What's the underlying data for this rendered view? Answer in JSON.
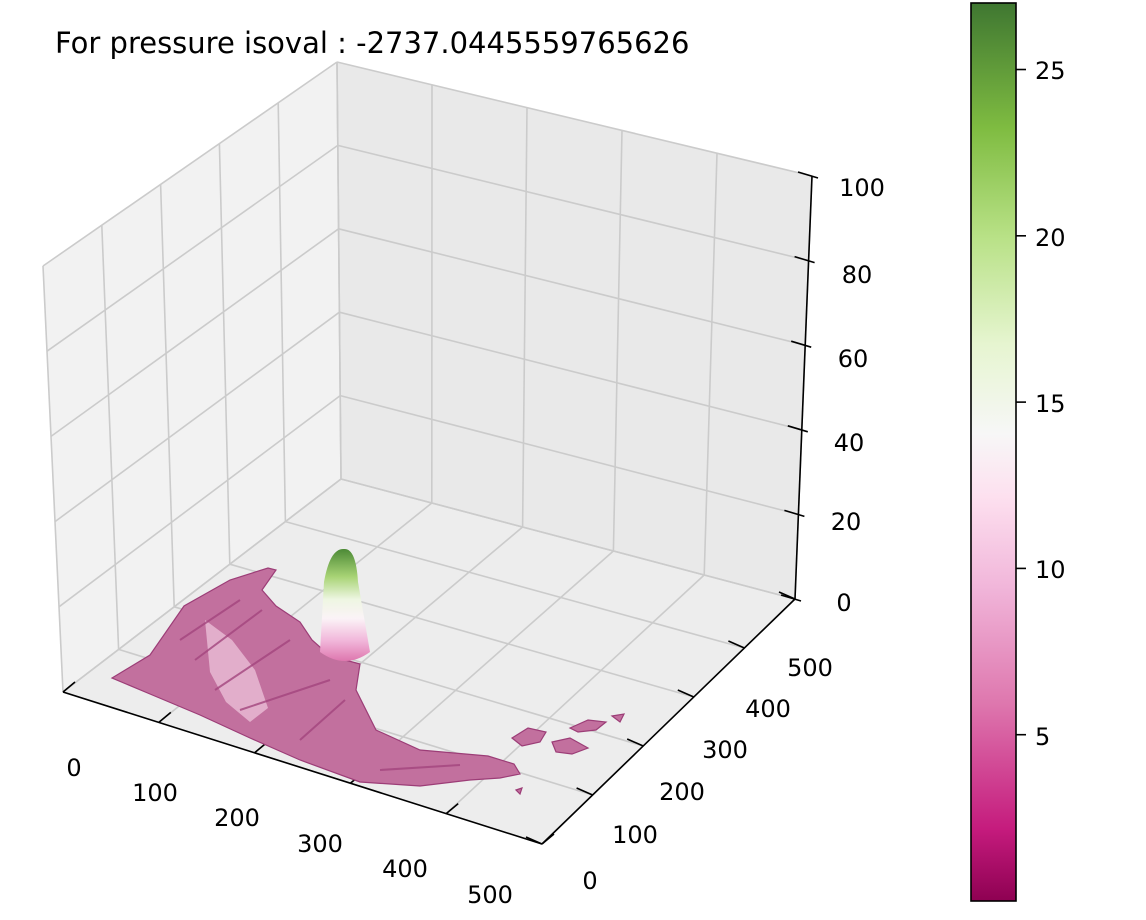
{
  "chart_data": {
    "type": "surface3d",
    "title": "For pressure isoval : -2737.0445559765626",
    "x_ticks": [
      "0",
      "100",
      "200",
      "300",
      "400",
      "500"
    ],
    "y_ticks": [
      "0",
      "100",
      "200",
      "300",
      "400",
      "500"
    ],
    "z_ticks": [
      "0",
      "20",
      "40",
      "60",
      "80",
      "100"
    ],
    "xlim": [
      0,
      500
    ],
    "ylim": [
      0,
      500
    ],
    "zlim": [
      0,
      100
    ],
    "colorbar": {
      "colormap": "PiYG",
      "ticks": [
        "5",
        "10",
        "15",
        "20",
        "25"
      ],
      "tick_values": [
        5,
        10,
        15,
        20,
        25
      ],
      "range": [
        0,
        27
      ]
    },
    "grid": true,
    "peak": {
      "x": 190,
      "y": 230,
      "z": 15,
      "value": 27
    }
  }
}
